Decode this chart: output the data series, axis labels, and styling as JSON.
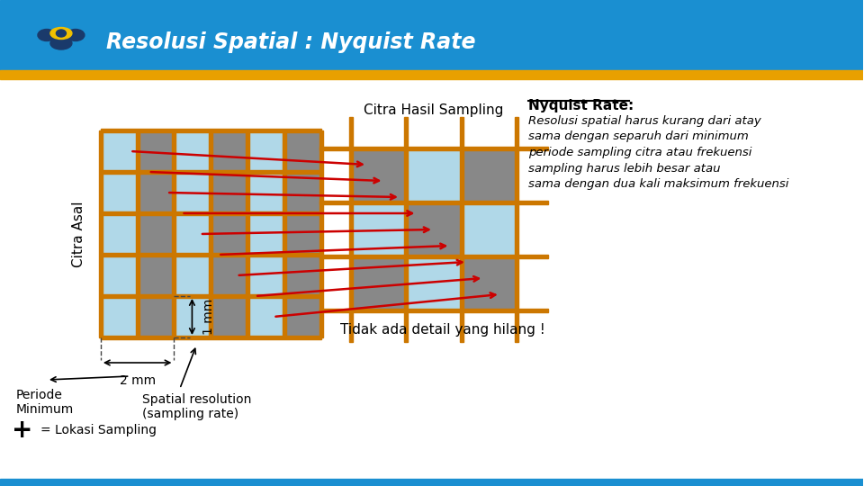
{
  "title": "Resolusi Spatial : Nyquist Rate",
  "title_color": "#ffffff",
  "header_bg": "#1a8fd1",
  "gold_bar_color": "#e8a000",
  "white_bg": "#ffffff",
  "citra_asal_label": "Citra Asal",
  "citra_hasil_label": "Citra Hasil Sampling",
  "tidak_ada_label": "Tidak ada detail yang hilang !",
  "label_2mm": "2 mm",
  "label_1mm": "1 mm",
  "periode_label": "Periode\nMinimum",
  "spatial_label": "Spatial resolution\n(sampling rate)",
  "lokasi_label": "= Lokasi Sampling",
  "nyquist_title": "Nyquist Rate:",
  "nyquist_text": "Resolusi spatial harus kurang dari atay\nsama dengan separuh dari minimum\nperiode sampling citra atau frekuensi\nsampling harus lebih besar atau\nsama dengan dua kali maksimum frekuensi",
  "grid_color_light": "#b0d8e8",
  "grid_color_dark": "#888888",
  "orange_color": "#cc7700",
  "red_color": "#cc0000",
  "dashed_color": "#444444",
  "bottom_bar_color": "#1a8fd1",
  "logo_dark": "#1a3a6b",
  "logo_yellow": "#f0c000"
}
